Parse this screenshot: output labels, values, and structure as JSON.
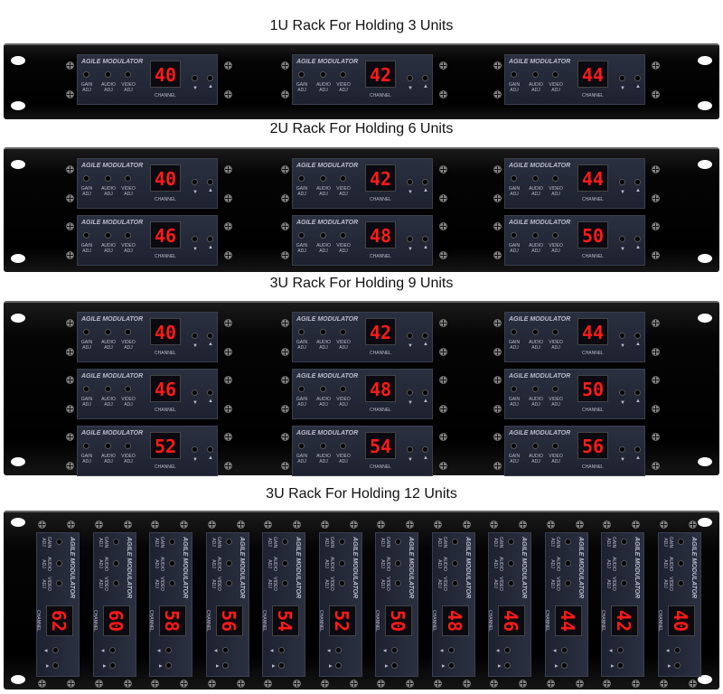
{
  "racks": [
    {
      "title": "1U Rack For Holding 3 Units",
      "channels": [
        [
          "40",
          "42",
          "44"
        ]
      ]
    },
    {
      "title": "2U Rack For Holding 6 Units",
      "channels": [
        [
          "40",
          "42",
          "44"
        ],
        [
          "46",
          "48",
          "50"
        ]
      ]
    },
    {
      "title": "3U Rack For Holding 9 Units",
      "channels": [
        [
          "40",
          "42",
          "44"
        ],
        [
          "46",
          "48",
          "50"
        ],
        [
          "52",
          "54",
          "56"
        ]
      ]
    },
    {
      "title": "3U Rack For Holding 12 Units",
      "channels": [
        "62",
        "60",
        "58",
        "56",
        "54",
        "52",
        "50",
        "48",
        "46",
        "44",
        "42",
        "40"
      ]
    }
  ],
  "module": {
    "label": "AGILE MODULATOR",
    "knobs": [
      "GAIN ADJ",
      "AUDIO ADJ",
      "VIDEO ADJ"
    ],
    "display_label": "CHANNEL",
    "down": "▼",
    "up": "▲"
  },
  "colors": {
    "display": "#ff1a1a",
    "panel": "#242838"
  }
}
